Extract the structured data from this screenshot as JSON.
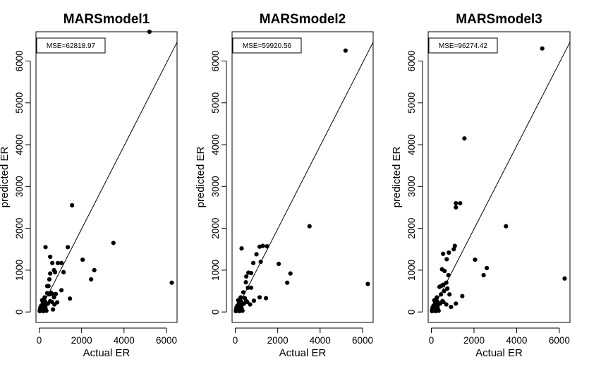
{
  "chart_data": [
    {
      "type": "scatter",
      "title": "MARSmodel1",
      "xlabel": "Actual ER",
      "ylabel": "predicted ER",
      "xlim": [
        -150,
        6500
      ],
      "ylim": [
        -250,
        6700
      ],
      "xticks": [
        0,
        2000,
        4000,
        6000
      ],
      "yticks": [
        0,
        1000,
        2000,
        3000,
        4000,
        5000,
        6000
      ],
      "reference_line": {
        "from": [
          0,
          0
        ],
        "to": [
          6500,
          6450
        ]
      },
      "legend": {
        "text": "MSE=62818.97",
        "position": "top-left"
      },
      "series": [
        {
          "name": "observations",
          "points": [
            [
              5200,
              6700
            ],
            [
              1550,
              2550
            ],
            [
              3500,
              1650
            ],
            [
              6250,
              700
            ],
            [
              2600,
              1000
            ],
            [
              2450,
              780
            ],
            [
              2050,
              1250
            ],
            [
              1350,
              1550
            ],
            [
              1450,
              320
            ],
            [
              300,
              1550
            ],
            [
              520,
              1320
            ],
            [
              1050,
              1170
            ],
            [
              880,
              1170
            ],
            [
              620,
              1170
            ],
            [
              1150,
              950
            ],
            [
              1050,
              520
            ],
            [
              750,
              950
            ],
            [
              520,
              920
            ],
            [
              480,
              780
            ],
            [
              700,
              1000
            ],
            [
              380,
              620
            ],
            [
              440,
              620
            ],
            [
              560,
              460
            ],
            [
              620,
              430
            ],
            [
              780,
              430
            ],
            [
              850,
              230
            ],
            [
              720,
              180
            ],
            [
              600,
              240
            ],
            [
              480,
              420
            ],
            [
              380,
              450
            ],
            [
              330,
              180
            ],
            [
              280,
              250
            ],
            [
              240,
              120
            ],
            [
              200,
              80
            ],
            [
              160,
              180
            ],
            [
              120,
              50
            ],
            [
              80,
              30
            ],
            [
              60,
              110
            ],
            [
              40,
              60
            ],
            [
              220,
              300
            ],
            [
              260,
              350
            ],
            [
              180,
              220
            ],
            [
              140,
              280
            ],
            [
              300,
              90
            ],
            [
              340,
              30
            ],
            [
              100,
              150
            ],
            [
              200,
              20
            ],
            [
              250,
              160
            ],
            [
              150,
              60
            ],
            [
              90,
              90
            ],
            [
              30,
              20
            ],
            [
              410,
              200
            ],
            [
              520,
              260
            ],
            [
              700,
              350
            ],
            [
              650,
              60
            ]
          ]
        }
      ]
    },
    {
      "type": "scatter",
      "title": "MARSmodel2",
      "xlabel": "Actual ER",
      "ylabel": "predicted ER",
      "xlim": [
        -150,
        6500
      ],
      "ylim": [
        -250,
        6700
      ],
      "xticks": [
        0,
        2000,
        4000,
        6000
      ],
      "yticks": [
        0,
        1000,
        2000,
        3000,
        4000,
        5000,
        6000
      ],
      "reference_line": {
        "from": [
          0,
          0
        ],
        "to": [
          6500,
          6450
        ]
      },
      "legend": {
        "text": "MSE=59920.56",
        "position": "top-left"
      },
      "series": [
        {
          "name": "observations",
          "points": [
            [
              5200,
              6250
            ],
            [
              3500,
              2050
            ],
            [
              6250,
              670
            ],
            [
              2600,
              920
            ],
            [
              2450,
              700
            ],
            [
              2050,
              1150
            ],
            [
              1500,
              1570
            ],
            [
              1300,
              1580
            ],
            [
              1150,
              1560
            ],
            [
              1450,
              330
            ],
            [
              300,
              1520
            ],
            [
              1000,
              1380
            ],
            [
              1200,
              1200
            ],
            [
              850,
              1170
            ],
            [
              750,
              930
            ],
            [
              620,
              940
            ],
            [
              520,
              850
            ],
            [
              500,
              710
            ],
            [
              750,
              580
            ],
            [
              600,
              580
            ],
            [
              380,
              470
            ],
            [
              880,
              270
            ],
            [
              700,
              180
            ],
            [
              560,
              240
            ],
            [
              1150,
              350
            ],
            [
              330,
              180
            ],
            [
              280,
              250
            ],
            [
              240,
              120
            ],
            [
              200,
              80
            ],
            [
              160,
              180
            ],
            [
              120,
              50
            ],
            [
              80,
              30
            ],
            [
              60,
              110
            ],
            [
              40,
              60
            ],
            [
              220,
              300
            ],
            [
              260,
              350
            ],
            [
              180,
              220
            ],
            [
              140,
              280
            ],
            [
              300,
              90
            ],
            [
              340,
              30
            ],
            [
              100,
              150
            ],
            [
              200,
              20
            ],
            [
              250,
              160
            ],
            [
              150,
              60
            ],
            [
              90,
              90
            ],
            [
              30,
              20
            ],
            [
              410,
              200
            ],
            [
              520,
              260
            ],
            [
              450,
              330
            ]
          ]
        }
      ]
    },
    {
      "type": "scatter",
      "title": "MARSmodel3",
      "xlabel": "Actual ER",
      "ylabel": "predicted ER",
      "xlim": [
        -150,
        6500
      ],
      "ylim": [
        -250,
        6700
      ],
      "xticks": [
        0,
        2000,
        4000,
        6000
      ],
      "yticks": [
        0,
        1000,
        2000,
        3000,
        4000,
        5000,
        6000
      ],
      "reference_line": {
        "from": [
          0,
          0
        ],
        "to": [
          6500,
          6450
        ]
      },
      "legend": {
        "text": "MSE=96274.42",
        "position": "top-left"
      },
      "series": [
        {
          "name": "observations",
          "points": [
            [
              5200,
              6300
            ],
            [
              1550,
              4150
            ],
            [
              1350,
              2600
            ],
            [
              1150,
              2600
            ],
            [
              1150,
              2500
            ],
            [
              3500,
              2050
            ],
            [
              6250,
              800
            ],
            [
              2600,
              1050
            ],
            [
              2450,
              880
            ],
            [
              2050,
              1250
            ],
            [
              1100,
              1580
            ],
            [
              1050,
              1500
            ],
            [
              820,
              1420
            ],
            [
              550,
              1390
            ],
            [
              720,
              1260
            ],
            [
              500,
              1020
            ],
            [
              620,
              980
            ],
            [
              800,
              880
            ],
            [
              700,
              700
            ],
            [
              550,
              650
            ],
            [
              450,
              620
            ],
            [
              380,
              600
            ],
            [
              750,
              560
            ],
            [
              600,
              500
            ],
            [
              850,
              420
            ],
            [
              1150,
              200
            ],
            [
              1450,
              380
            ],
            [
              920,
              120
            ],
            [
              700,
              180
            ],
            [
              560,
              240
            ],
            [
              330,
              180
            ],
            [
              280,
              250
            ],
            [
              240,
              120
            ],
            [
              200,
              80
            ],
            [
              160,
              180
            ],
            [
              120,
              50
            ],
            [
              80,
              30
            ],
            [
              60,
              110
            ],
            [
              40,
              60
            ],
            [
              220,
              300
            ],
            [
              260,
              350
            ],
            [
              180,
              220
            ],
            [
              140,
              280
            ],
            [
              300,
              90
            ],
            [
              340,
              30
            ],
            [
              100,
              150
            ],
            [
              200,
              20
            ],
            [
              250,
              160
            ],
            [
              150,
              60
            ],
            [
              90,
              90
            ],
            [
              30,
              20
            ],
            [
              410,
              200
            ],
            [
              520,
              260
            ],
            [
              450,
              420
            ]
          ]
        }
      ]
    }
  ]
}
